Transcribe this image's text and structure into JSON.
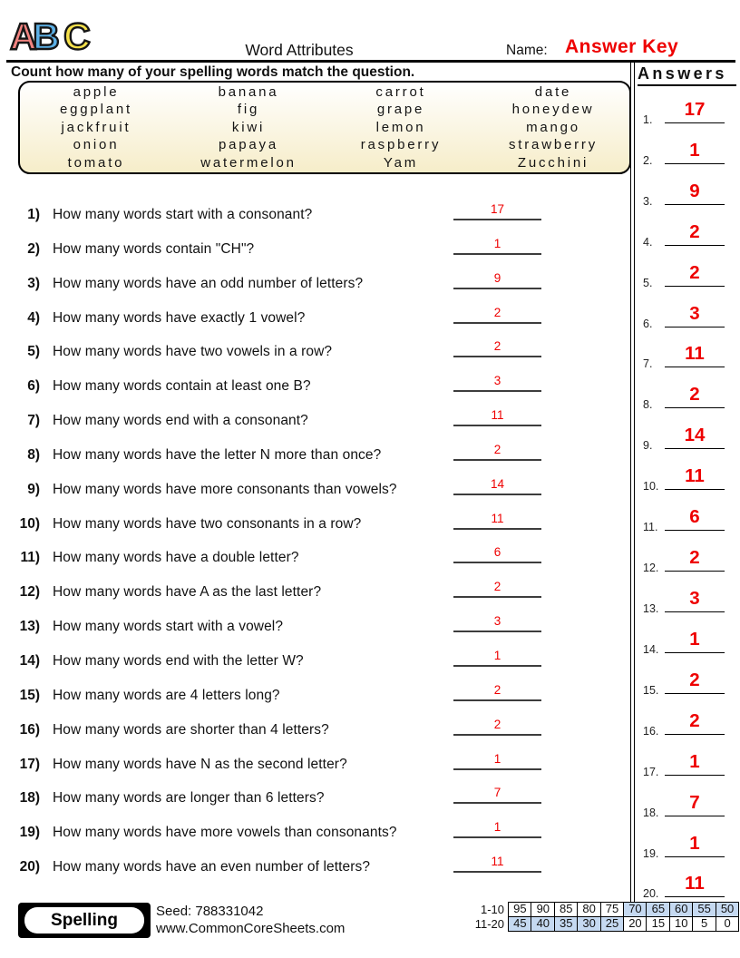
{
  "header": {
    "logo_letters": [
      {
        "ch": "A",
        "color": "#f28380"
      },
      {
        "ch": "B",
        "color": "#5cb0e6"
      },
      {
        "ch": "C",
        "color": "#f6e14b"
      }
    ],
    "title": "Word Attributes",
    "name_label": "Name:",
    "name_value": "Answer Key"
  },
  "instruction": "Count how many of your spelling words match the question.",
  "word_bank": [
    "apple",
    "banana",
    "carrot",
    "date",
    "eggplant",
    "fig",
    "grape",
    "honeydew",
    "jackfruit",
    "kiwi",
    "lemon",
    "mango",
    "onion",
    "papaya",
    "raspberry",
    "strawberry",
    "tomato",
    "watermelon",
    "Yam",
    "Zucchini"
  ],
  "questions": [
    {
      "num": "1)",
      "text": "How many words start with a consonant?",
      "answer": "17"
    },
    {
      "num": "2)",
      "text": "How many words contain \"CH\"?",
      "answer": "1"
    },
    {
      "num": "3)",
      "text": "How many words have an odd number of letters?",
      "answer": "9"
    },
    {
      "num": "4)",
      "text": "How many words have exactly 1 vowel?",
      "answer": "2"
    },
    {
      "num": "5)",
      "text": "How many words have two vowels in a row?",
      "answer": "2"
    },
    {
      "num": "6)",
      "text": "How many words contain at least one B?",
      "answer": "3"
    },
    {
      "num": "7)",
      "text": "How many words end with a consonant?",
      "answer": "11"
    },
    {
      "num": "8)",
      "text": "How many words have the letter N more than once?",
      "answer": "2"
    },
    {
      "num": "9)",
      "text": "How many words have more consonants than vowels?",
      "answer": "14"
    },
    {
      "num": "10)",
      "text": "How many words have two consonants in a row?",
      "answer": "11"
    },
    {
      "num": "11)",
      "text": "How many words have a double letter?",
      "answer": "6"
    },
    {
      "num": "12)",
      "text": "How many words have A as the last letter?",
      "answer": "2"
    },
    {
      "num": "13)",
      "text": "How many words start with a vowel?",
      "answer": "3"
    },
    {
      "num": "14)",
      "text": "How many words end with the letter W?",
      "answer": "1"
    },
    {
      "num": "15)",
      "text": "How many words are 4 letters long?",
      "answer": "2"
    },
    {
      "num": "16)",
      "text": "How many words are shorter than 4 letters?",
      "answer": "2"
    },
    {
      "num": "17)",
      "text": "How many words have N as the second letter?",
      "answer": "1"
    },
    {
      "num": "18)",
      "text": "How many words are longer than 6 letters?",
      "answer": "7"
    },
    {
      "num": "19)",
      "text": "How many words have more vowels than consonants?",
      "answer": "1"
    },
    {
      "num": "20)",
      "text": "How many words have an even number of letters?",
      "answer": "11"
    }
  ],
  "answers_panel": {
    "title": "Answers",
    "items": [
      {
        "num": "1.",
        "value": "17"
      },
      {
        "num": "2.",
        "value": "1"
      },
      {
        "num": "3.",
        "value": "9"
      },
      {
        "num": "4.",
        "value": "2"
      },
      {
        "num": "5.",
        "value": "2"
      },
      {
        "num": "6.",
        "value": "3"
      },
      {
        "num": "7.",
        "value": "11"
      },
      {
        "num": "8.",
        "value": "2"
      },
      {
        "num": "9.",
        "value": "14"
      },
      {
        "num": "10.",
        "value": "11"
      },
      {
        "num": "11.",
        "value": "6"
      },
      {
        "num": "12.",
        "value": "2"
      },
      {
        "num": "13.",
        "value": "3"
      },
      {
        "num": "14.",
        "value": "1"
      },
      {
        "num": "15.",
        "value": "2"
      },
      {
        "num": "16.",
        "value": "2"
      },
      {
        "num": "17.",
        "value": "1"
      },
      {
        "num": "18.",
        "value": "7"
      },
      {
        "num": "19.",
        "value": "1"
      },
      {
        "num": "20.",
        "value": "11"
      }
    ]
  },
  "footer": {
    "subject": "Spelling",
    "seed": "Seed: 788331042",
    "site": "www.CommonCoreSheets.com",
    "grade_rows": [
      {
        "label": "1-10",
        "cells": [
          {
            "v": "95",
            "hl": false
          },
          {
            "v": "90",
            "hl": false
          },
          {
            "v": "85",
            "hl": false
          },
          {
            "v": "80",
            "hl": false
          },
          {
            "v": "75",
            "hl": false
          },
          {
            "v": "70",
            "hl": true
          },
          {
            "v": "65",
            "hl": true
          },
          {
            "v": "60",
            "hl": true
          },
          {
            "v": "55",
            "hl": true
          },
          {
            "v": "50",
            "hl": true
          }
        ]
      },
      {
        "label": "11-20",
        "cells": [
          {
            "v": "45",
            "hl": true
          },
          {
            "v": "40",
            "hl": true
          },
          {
            "v": "35",
            "hl": true
          },
          {
            "v": "30",
            "hl": true
          },
          {
            "v": "25",
            "hl": true
          },
          {
            "v": "20",
            "hl": false
          },
          {
            "v": "15",
            "hl": false
          },
          {
            "v": "10",
            "hl": false
          },
          {
            "v": "5",
            "hl": false
          },
          {
            "v": "0",
            "hl": false
          }
        ]
      }
    ]
  },
  "colors": {
    "accent-red": "#ee0000",
    "table-blue": "#c5d9f1",
    "box-cream": "#f6edc9"
  }
}
